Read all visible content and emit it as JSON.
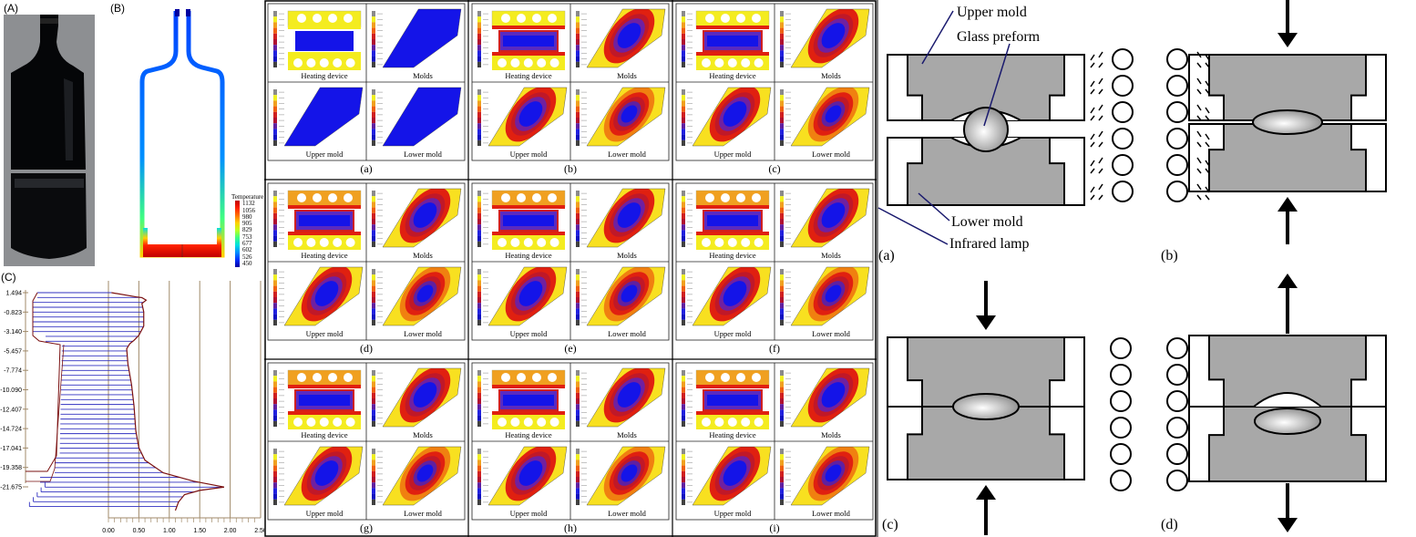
{
  "panels": {
    "A": "(A)",
    "B": "(B)",
    "C": "(C)"
  },
  "temperature_legend": {
    "title": "Temperature",
    "values": [
      "1132",
      "1056",
      "980",
      "905",
      "829",
      "753",
      "677",
      "602",
      "526",
      "450"
    ],
    "colors": [
      "#c00000",
      "#ff2000",
      "#ff7000",
      "#ffd000",
      "#c0ff20",
      "#40ff80",
      "#00e0e0",
      "#0090ff",
      "#0030ff",
      "#0000a0"
    ]
  },
  "chart_data": {
    "type": "line",
    "title": "",
    "xlabel": "",
    "ylabel": "",
    "x_ticks": [
      "0.00",
      "0.50",
      "1.00",
      "1.50",
      "2.00",
      "2.50"
    ],
    "y_ticks": [
      "1.494",
      "-0.823",
      "-3.140",
      "-5.457",
      "-7.774",
      "-10.090",
      "-12.407",
      "-14.724",
      "-17.041",
      "-19.358",
      "-21.675"
    ],
    "xlim": [
      0,
      2.5
    ],
    "ylim": [
      -24.8,
      1.494
    ],
    "grid": "vertical",
    "series": [
      {
        "points": [
          [
            0.05,
            1.494
          ],
          [
            0.45,
            1.0
          ],
          [
            0.55,
            0.9
          ],
          [
            0.62,
            0.6
          ],
          [
            0.55,
            0.2
          ],
          [
            0.58,
            -0.8
          ],
          [
            0.58,
            -2.5
          ],
          [
            0.5,
            -3.6
          ],
          [
            0.42,
            -4.2
          ],
          [
            0.35,
            -4.6
          ],
          [
            0.3,
            -5.2
          ],
          [
            0.32,
            -7.0
          ],
          [
            0.38,
            -9.5
          ],
          [
            0.42,
            -12.0
          ],
          [
            0.45,
            -15.0
          ],
          [
            0.5,
            -17.0
          ],
          [
            0.6,
            -18.5
          ],
          [
            0.9,
            -20.0
          ],
          [
            1.4,
            -21.0
          ],
          [
            1.9,
            -21.7
          ],
          [
            1.5,
            -22.1
          ],
          [
            1.25,
            -22.6
          ],
          [
            1.15,
            -23.5
          ],
          [
            1.1,
            -24.5
          ]
        ]
      }
    ]
  },
  "simulation_grid": {
    "cells": [
      {
        "label": "(a)",
        "captions": [
          "Heating device",
          "Molds",
          "Upper mold",
          "Lower mold"
        ]
      },
      {
        "label": "(b)",
        "captions": [
          "Heating device",
          "Molds",
          "Upper mold",
          "Lower mold"
        ]
      },
      {
        "label": "(c)",
        "captions": [
          "Heating device",
          "Molds",
          "Upper mold",
          "Lower mold"
        ]
      },
      {
        "label": "(d)",
        "captions": [
          "Heating device",
          "Molds",
          "Upper mold",
          "Lower mold"
        ]
      },
      {
        "label": "(e)",
        "captions": [
          "Heating device",
          "Molds",
          "Upper mold",
          "Lower mold"
        ]
      },
      {
        "label": "(f)",
        "captions": [
          "Heating device",
          "Molds",
          "Upper mold",
          "Lower mold"
        ]
      },
      {
        "label": "(g)",
        "captions": [
          "Heating device",
          "Molds",
          "Upper mold",
          "Lower mold"
        ]
      },
      {
        "label": "(h)",
        "captions": [
          "Heating device",
          "Molds",
          "Upper mold",
          "Lower mold"
        ]
      },
      {
        "label": "(i)",
        "captions": [
          "Heating device",
          "Molds",
          "Upper mold",
          "Lower mold"
        ]
      }
    ]
  },
  "process_diagrams": {
    "labels": {
      "upper_mold": "Upper mold",
      "glass_preform": "Glass preform",
      "lower_mold": "Lower mold",
      "infrared_lamp": "Infrared lamp"
    },
    "steps": [
      "(a)",
      "(b)",
      "(c)",
      "(d)"
    ]
  },
  "colors": {
    "mold_gray": "#a8a8a8",
    "leader_line": "#1a1a6e",
    "profile_line": "#3030c0",
    "profile_outline": "#7a1010",
    "grid_line": "#a08a6a"
  }
}
